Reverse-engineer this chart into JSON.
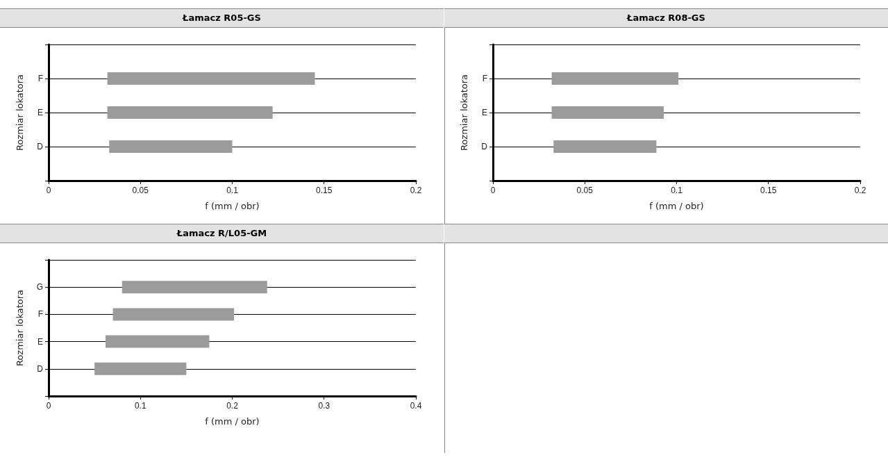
{
  "chart_data": [
    {
      "type": "bar",
      "orientation": "horizontal",
      "title": "Łamacz R05-GS",
      "xlabel": "f (mm / obr)",
      "ylabel": "Rozmiar lokatora",
      "categories": [
        "F",
        "E",
        "D"
      ],
      "base": [
        0.032,
        0.032,
        0.033
      ],
      "values": [
        0.113,
        0.09,
        0.067
      ],
      "color": "#9b9b9b",
      "xlim": [
        0,
        0.2
      ],
      "xticks": [
        0,
        0.05,
        0.1,
        0.15,
        0.2
      ],
      "grid": "y"
    },
    {
      "type": "bar",
      "orientation": "horizontal",
      "title": "Łamacz R08-GS",
      "xlabel": "f (mm / obr)",
      "ylabel": "Rozmiar lokatora",
      "categories": [
        "F",
        "E",
        "D"
      ],
      "base": [
        0.032,
        0.032,
        0.033
      ],
      "values": [
        0.069,
        0.061,
        0.056
      ],
      "color": "#9b9b9b",
      "xlim": [
        0,
        0.2
      ],
      "xticks": [
        0,
        0.05,
        0.1,
        0.15,
        0.2
      ],
      "grid": "y"
    },
    {
      "type": "bar",
      "orientation": "horizontal",
      "title": "Łamacz R/L05-GM",
      "xlabel": "f (mm / obr)",
      "ylabel": "Rozmiar lokatora",
      "categories": [
        "G",
        "F",
        "E",
        "D"
      ],
      "base": [
        0.08,
        0.07,
        0.062,
        0.05
      ],
      "values": [
        0.158,
        0.132,
        0.113,
        0.1
      ],
      "color": "#9b9b9b",
      "xlim": [
        0,
        0.4
      ],
      "xticks": [
        0,
        0.1,
        0.2,
        0.3,
        0.4
      ],
      "grid": "y"
    }
  ]
}
